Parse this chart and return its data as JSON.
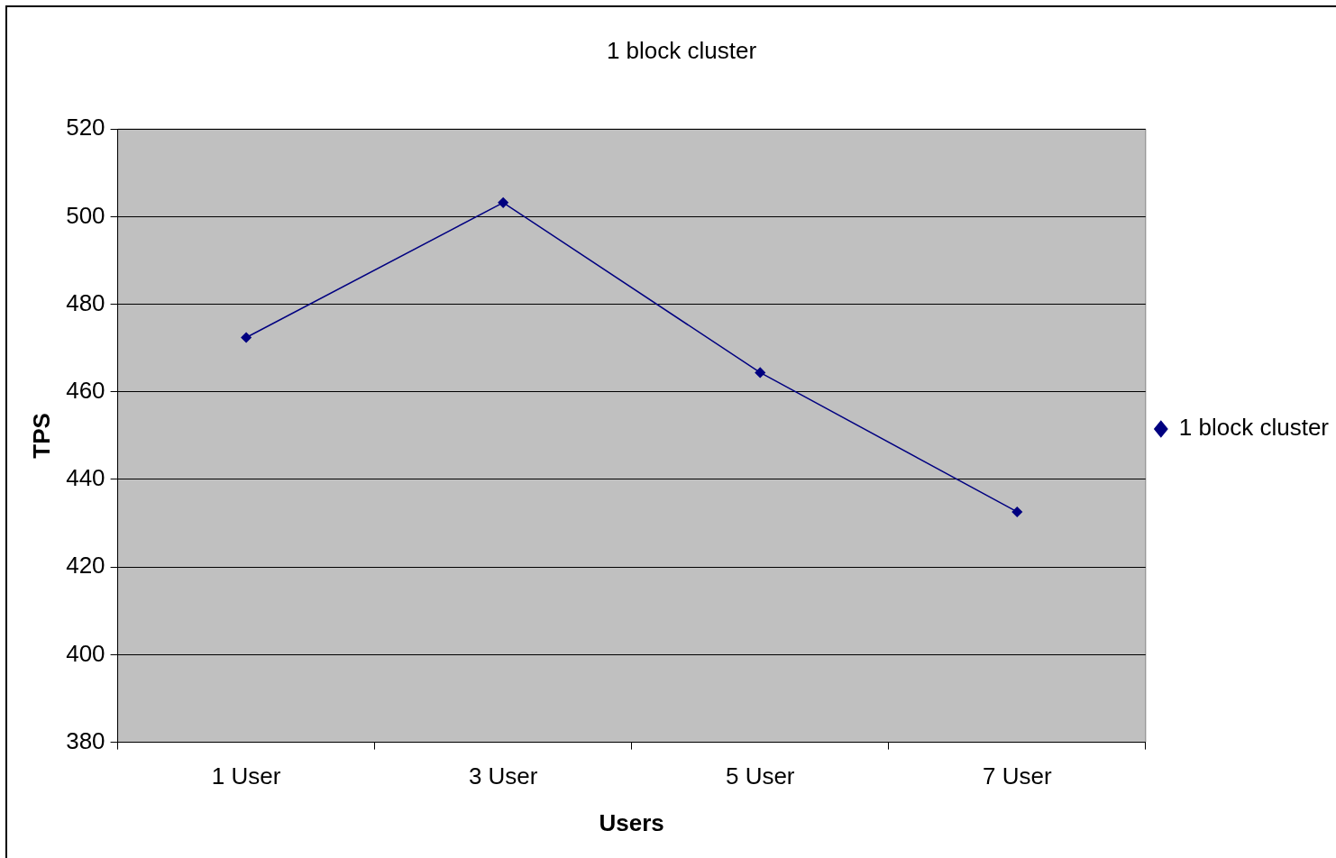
{
  "chart_data": {
    "type": "line",
    "title": "1 block cluster",
    "xlabel": "Users",
    "ylabel": "TPS",
    "categories": [
      "1 User",
      "3 User",
      "5 User",
      "7 User"
    ],
    "series": [
      {
        "name": "1 block cluster",
        "color": "#000080",
        "values": [
          472.4,
          503.2,
          464.4,
          432.6
        ]
      }
    ],
    "ylim": [
      380,
      520
    ],
    "yticks": [
      380,
      400,
      420,
      440,
      460,
      480,
      500,
      520
    ],
    "grid": "y",
    "legend": "right",
    "marker": "diamond",
    "line_style": "solid"
  }
}
